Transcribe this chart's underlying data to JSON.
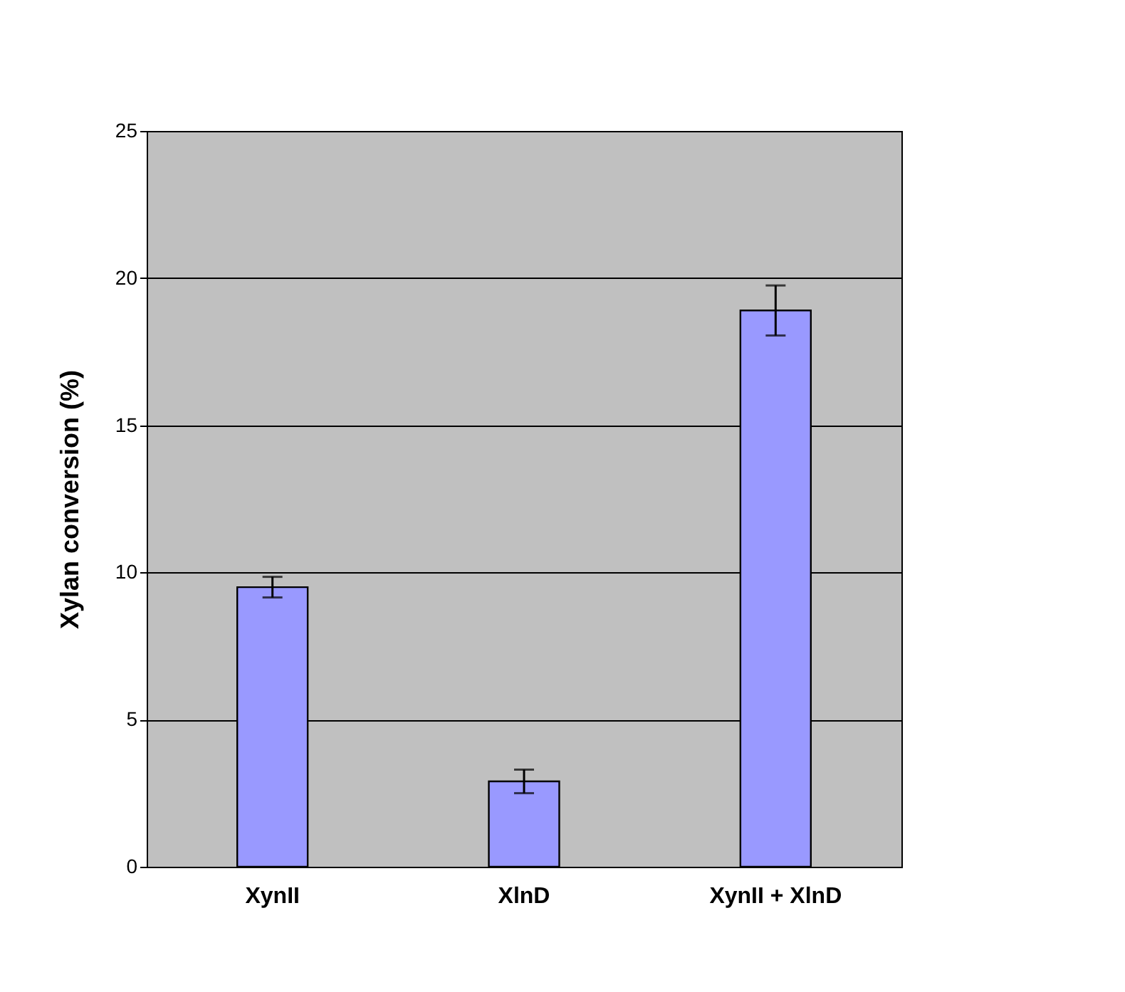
{
  "chart_data": {
    "type": "bar",
    "ylabel": "Xylan conversion (%)",
    "categories": [
      "XynII",
      "XlnD",
      "XynII + XlnD"
    ],
    "values": [
      9.5,
      2.9,
      18.9
    ],
    "errors": [
      0.35,
      0.4,
      0.85
    ],
    "color": "#9999ff",
    "ylim": [
      0,
      25
    ],
    "yticks": [
      0,
      5,
      10,
      15,
      20,
      25
    ],
    "grid": "y"
  }
}
